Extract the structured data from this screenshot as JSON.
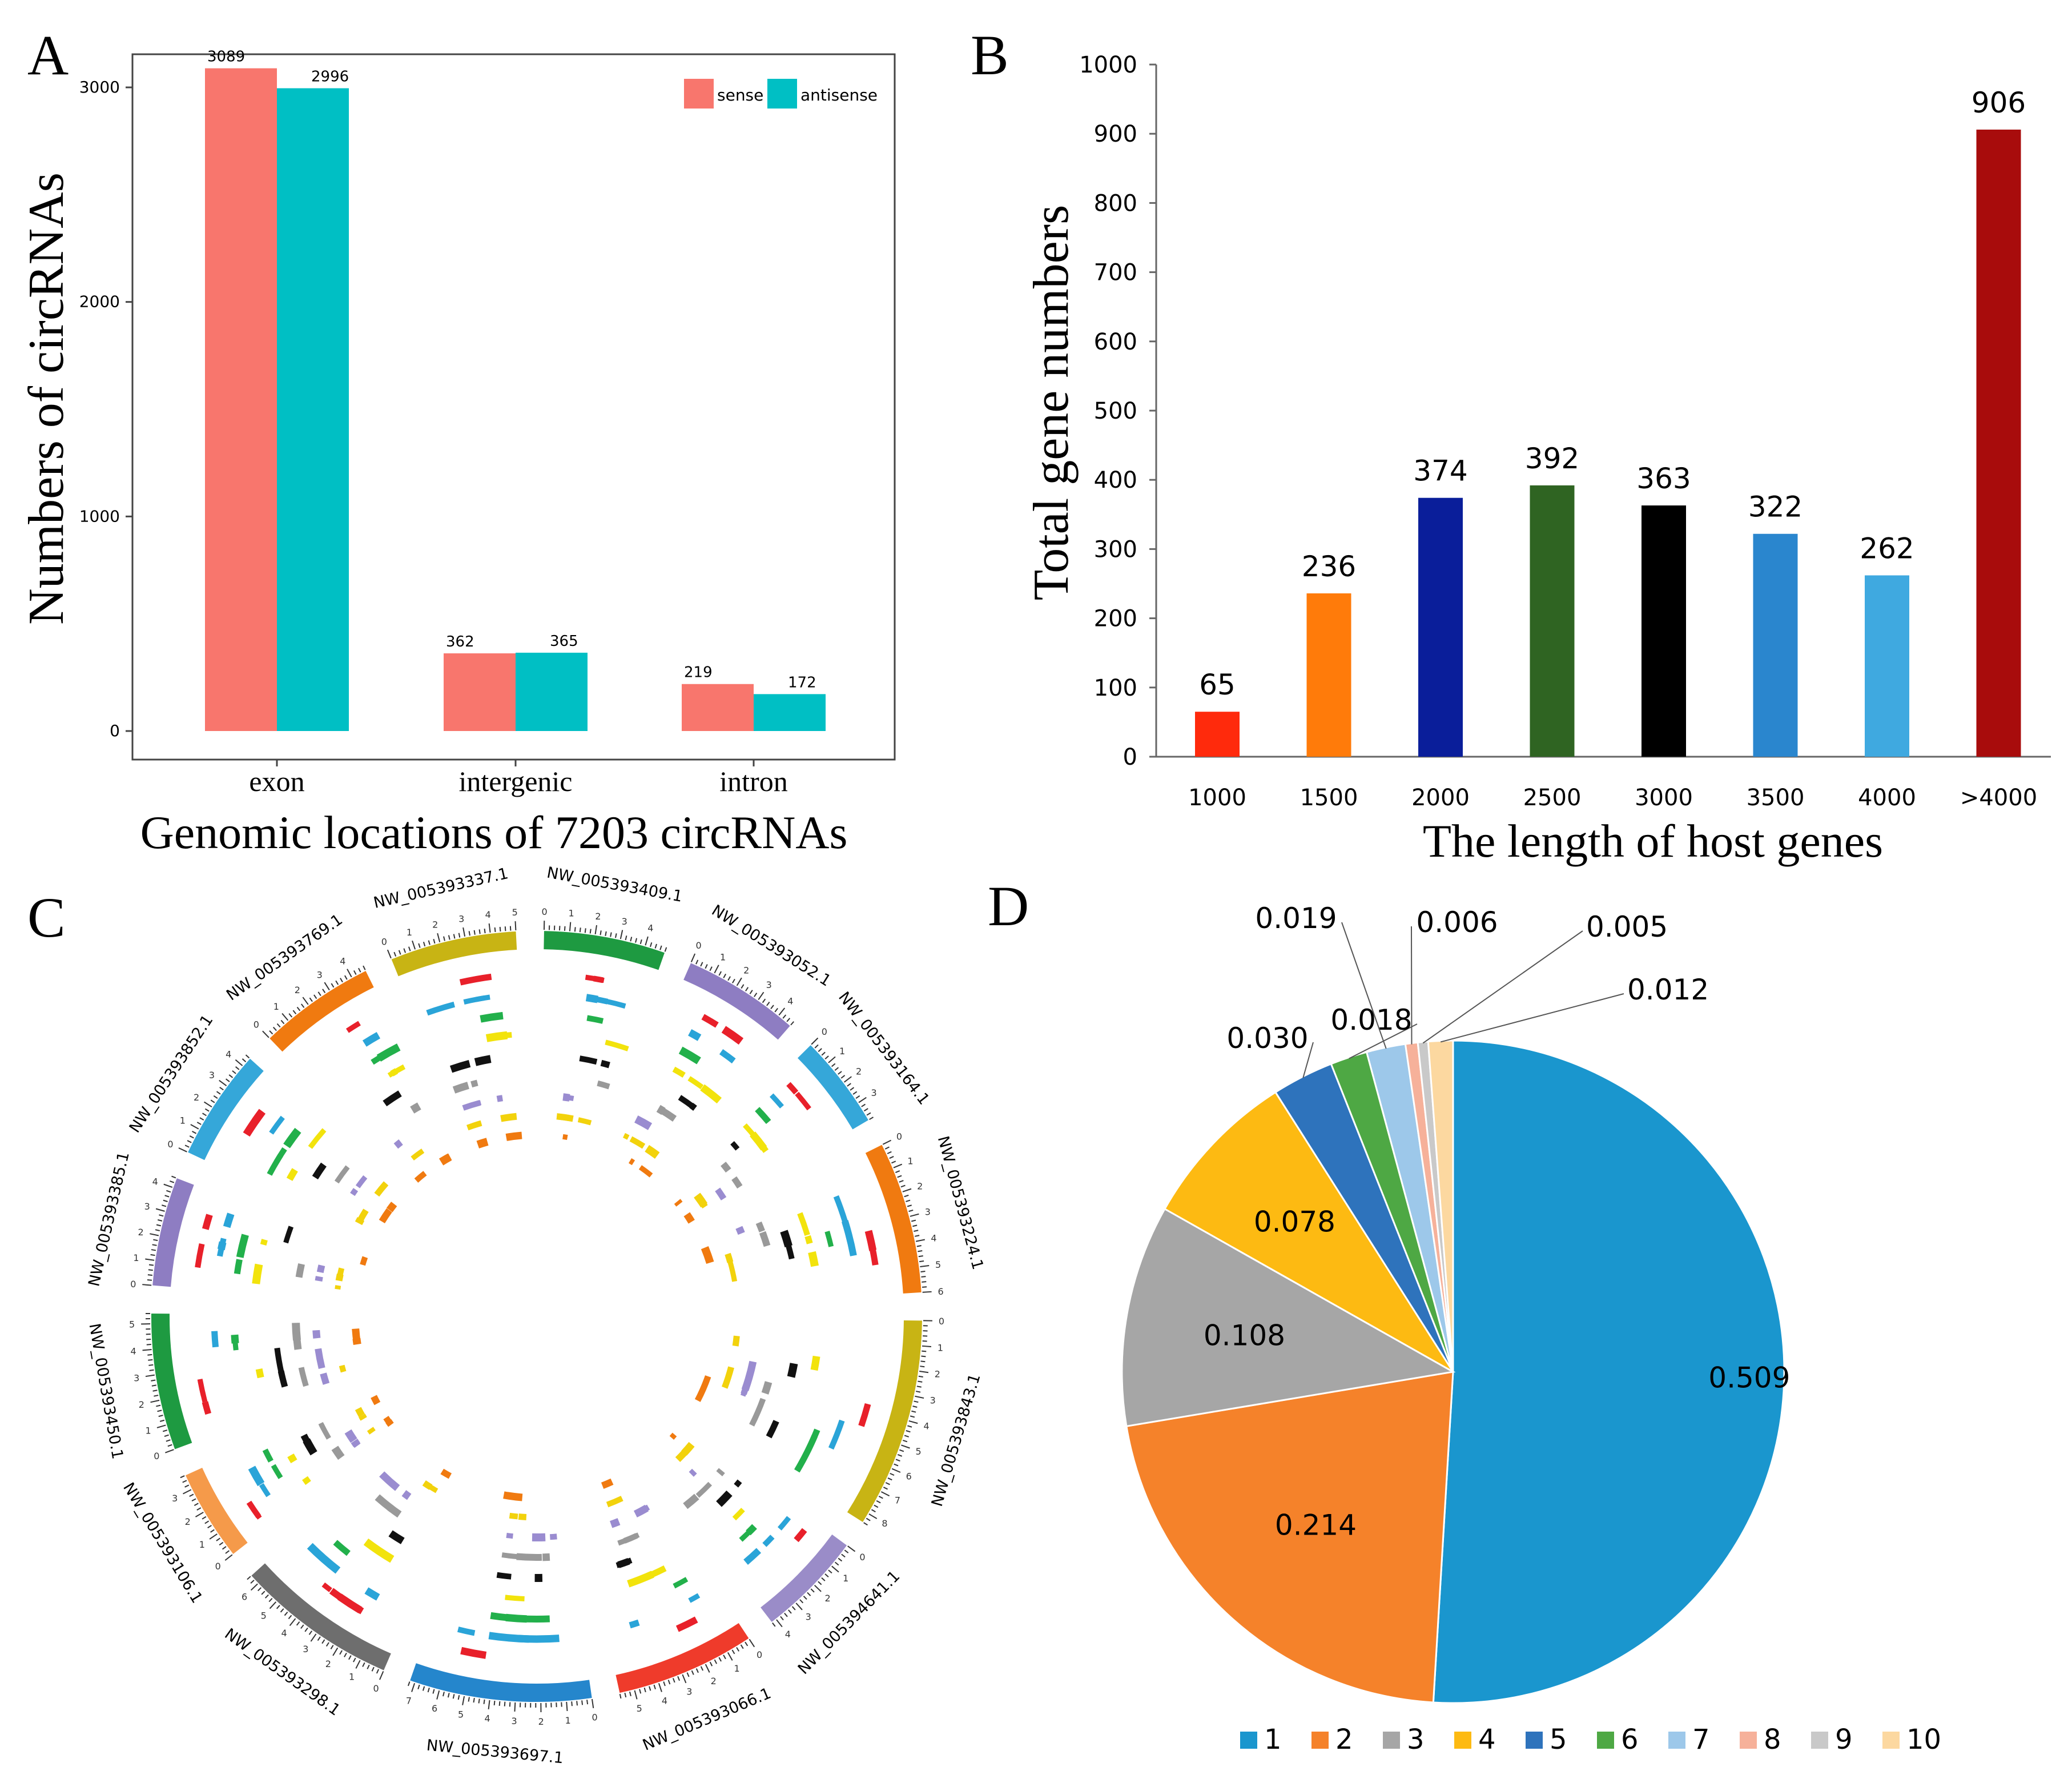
{
  "chart_data": [
    {
      "panel": "A",
      "type": "bar",
      "categories": [
        "exon",
        "intergenic",
        "intron"
      ],
      "series": [
        {
          "name": "sense",
          "color": "#F8766D",
          "values": [
            3089,
            362,
            219
          ]
        },
        {
          "name": "antisense",
          "color": "#00BFC4",
          "values": [
            2996,
            365,
            172
          ]
        }
      ],
      "data_labels": [
        [
          "3089",
          "362",
          "219"
        ],
        [
          "2996",
          "365",
          "172"
        ]
      ],
      "xlabel": "Genomic locations of 7203 circRNAs",
      "ylabel": "Numbers of circRNAs",
      "ylim": [
        0,
        3150
      ],
      "yticks": [
        0,
        1000,
        2000,
        3000
      ],
      "ytick_labels": [
        "0",
        "1000",
        "2000",
        "3000"
      ],
      "legend_position": "top-right",
      "grid": false
    },
    {
      "panel": "B",
      "type": "bar",
      "categories": [
        "1000",
        "1500",
        "2000",
        "2500",
        "3000",
        "3500",
        "4000",
        ">4000"
      ],
      "values": [
        65,
        236,
        374,
        392,
        363,
        322,
        262,
        906
      ],
      "value_labels": [
        "65",
        "236",
        "374",
        "392",
        "363",
        "322",
        "262",
        "906"
      ],
      "colors": [
        "#FF2A0C",
        "#FF7B0A",
        "#0A1E9A",
        "#2F6422",
        "#000000",
        "#2A86CE",
        "#3FA9E0",
        "#A80C0C"
      ],
      "xlabel": "The length of host genes",
      "ylabel": "Total gene numbers",
      "ylim": [
        0,
        1000
      ],
      "yticks": [
        0,
        100,
        200,
        300,
        400,
        500,
        600,
        700,
        800,
        900,
        1000
      ],
      "ytick_labels": [
        "0",
        "100",
        "200",
        "300",
        "400",
        "500",
        "600",
        "700",
        "800",
        "900",
        "1000"
      ],
      "grid": false
    },
    {
      "panel": "C",
      "type": "other",
      "description_kind": "circos",
      "chromosomes": [
        "NW_005393409.1",
        "NW_005393052.1",
        "NW_005393164.1",
        "NW_005393224.1",
        "NW_005393843.1",
        "NW_005394641.1",
        "NW_005393066.1",
        "NW_005393697.1",
        "NW_005393298.1",
        "NW_005393106.1",
        "NW_005393450.1",
        "NW_005393385.1",
        "NW_005393852.1",
        "NW_005393769.1",
        "NW_005393337.1"
      ],
      "chromosome_lengths": [
        4.8,
        4.6,
        3.7,
        6.0,
        8.3,
        4.2,
        5.5,
        7.2,
        6.4,
        3.6,
        5.4,
        4.3,
        4.4,
        4.6,
        5.0
      ],
      "chromosome_colors": [
        "#1E9A41",
        "#8E7DC2",
        "#35A7D9",
        "#F07A10",
        "#C8B414",
        "#9A8CC8",
        "#EF3B2B",
        "#2586CC",
        "#6E6E6E",
        "#F59A4A",
        "#1E9A41",
        "#8E7DC2",
        "#35A7D9",
        "#F07A10",
        "#C8B414"
      ],
      "track_colors": [
        "#E8202A",
        "#2AA4D8",
        "#22B04B",
        "#F2E30C",
        "#111111",
        "#999999",
        "#9A8CD0",
        "#F2D20C",
        "#F07A10"
      ]
    },
    {
      "panel": "D",
      "type": "pie",
      "categories": [
        "1",
        "2",
        "3",
        "4",
        "5",
        "6",
        "7",
        "8",
        "9",
        "10"
      ],
      "values": [
        0.509,
        0.214,
        0.108,
        0.078,
        0.03,
        0.018,
        0.019,
        0.006,
        0.005,
        0.012
      ],
      "value_labels": [
        "0.509",
        "0.214",
        "0.108",
        "0.078",
        "0.030",
        "0.018",
        "0.019",
        "0.006",
        "0.005",
        "0.012"
      ],
      "colors": [
        "#1A96CE",
        "#F5822A",
        "#A6A6A6",
        "#FDBA12",
        "#2E73BC",
        "#4EA844",
        "#9DC8EA",
        "#F6B19A",
        "#C9C9C9",
        "#FCD8A0"
      ],
      "legend_position": "bottom"
    }
  ],
  "panel_labels": [
    "A",
    "B",
    "C",
    "D"
  ]
}
